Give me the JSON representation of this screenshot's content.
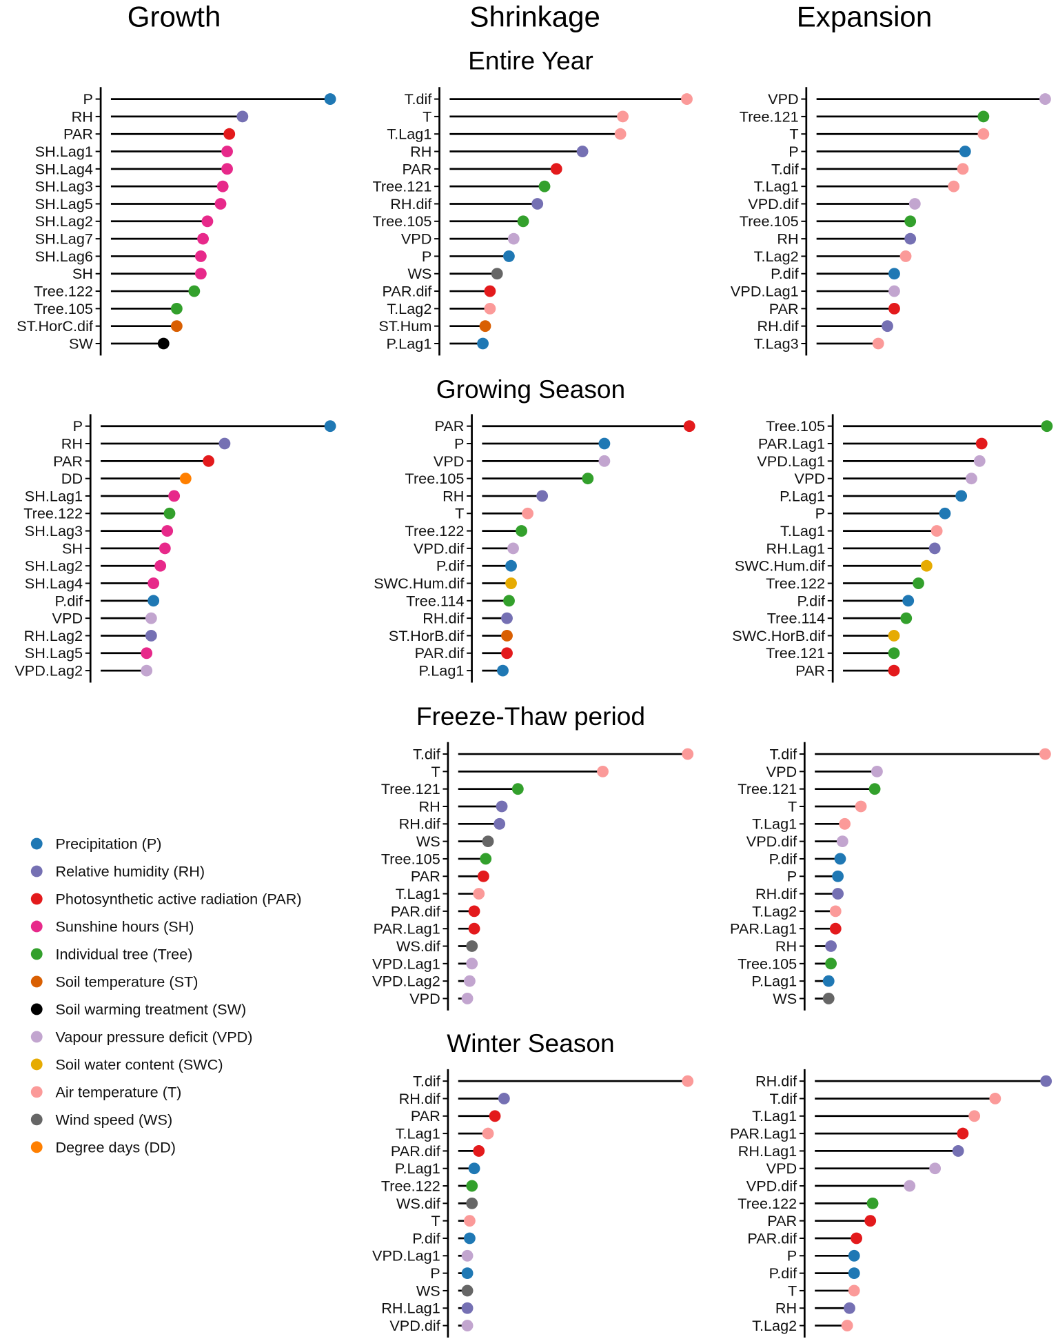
{
  "chart_data": {
    "type": "lollipop",
    "value_note": "relative importance, normalized to top variable = 100 per panel (no axis shown)",
    "column_titles": [
      "Growth",
      "Shrinkage",
      "Expansion"
    ],
    "section_titles": [
      "Entire Year",
      "Growing Season",
      "Freeze-Thaw period",
      "Winter Season"
    ],
    "colors": {
      "P": "#1F78B4",
      "RH": "#7570B3",
      "PAR": "#E31A1C",
      "SH": "#E7298A",
      "Tree": "#33A02C",
      "ST": "#D95F02",
      "SW": "#000000",
      "VPD": "#C2A5CF",
      "SWC": "#E6AB02",
      "T": "#FB9A99",
      "WS": "#666666",
      "DD": "#FF7F00"
    },
    "legend": [
      {
        "key": "P",
        "label": "Precipitation (P)"
      },
      {
        "key": "RH",
        "label": "Relative humidity (RH)"
      },
      {
        "key": "PAR",
        "label": "Photosynthetic active radiation (PAR)"
      },
      {
        "key": "SH",
        "label": "Sunshine hours (SH)"
      },
      {
        "key": "Tree",
        "label": "Individual tree (Tree)"
      },
      {
        "key": "ST",
        "label": "Soil temperature (ST)"
      },
      {
        "key": "SW",
        "label": "Soil warming treatment (SW)"
      },
      {
        "key": "VPD",
        "label": "Vapour pressure deficit (VPD)"
      },
      {
        "key": "SWC",
        "label": "Soil water content (SWC)"
      },
      {
        "key": "T",
        "label": "Air temperature (T)"
      },
      {
        "key": "WS",
        "label": "Wind speed (WS)"
      },
      {
        "key": "DD",
        "label": "Degree days (DD)"
      }
    ],
    "panels": [
      {
        "column": "Growth",
        "section": "Entire Year",
        "items": [
          [
            "P",
            "P",
            100
          ],
          [
            "RH",
            "RH",
            60
          ],
          [
            "PAR",
            "PAR",
            54
          ],
          [
            "SH.Lag1",
            "SH",
            53
          ],
          [
            "SH.Lag4",
            "SH",
            53
          ],
          [
            "SH.Lag3",
            "SH",
            51
          ],
          [
            "SH.Lag5",
            "SH",
            50
          ],
          [
            "SH.Lag2",
            "SH",
            44
          ],
          [
            "SH.Lag7",
            "SH",
            42
          ],
          [
            "SH.Lag6",
            "SH",
            41
          ],
          [
            "SH",
            "SH",
            41
          ],
          [
            "Tree.122",
            "Tree",
            38
          ],
          [
            "Tree.105",
            "Tree",
            30
          ],
          [
            "ST.HorC.dif",
            "ST",
            30
          ],
          [
            "SW",
            "SW",
            24
          ]
        ]
      },
      {
        "column": "Shrinkage",
        "section": "Entire Year",
        "items": [
          [
            "T.dif",
            "T",
            100
          ],
          [
            "T",
            "T",
            73
          ],
          [
            "T.Lag1",
            "T",
            72
          ],
          [
            "RH",
            "RH",
            56
          ],
          [
            "PAR",
            "PAR",
            45
          ],
          [
            "Tree.121",
            "Tree",
            40
          ],
          [
            "RH.dif",
            "RH",
            37
          ],
          [
            "Tree.105",
            "Tree",
            31
          ],
          [
            "VPD",
            "VPD",
            27
          ],
          [
            "P",
            "P",
            25
          ],
          [
            "WS",
            "WS",
            20
          ],
          [
            "PAR.dif",
            "PAR",
            17
          ],
          [
            "T.Lag2",
            "T",
            17
          ],
          [
            "ST.Hum",
            "ST",
            15
          ],
          [
            "P.Lag1",
            "P",
            14
          ]
        ]
      },
      {
        "column": "Expansion",
        "section": "Entire Year",
        "items": [
          [
            "VPD",
            "VPD",
            100
          ],
          [
            "Tree.121",
            "Tree",
            73
          ],
          [
            "T",
            "T",
            73
          ],
          [
            "P",
            "P",
            65
          ],
          [
            "T.dif",
            "T",
            64
          ],
          [
            "T.Lag1",
            "T",
            60
          ],
          [
            "VPD.dif",
            "VPD",
            43
          ],
          [
            "Tree.105",
            "Tree",
            41
          ],
          [
            "RH",
            "RH",
            41
          ],
          [
            "T.Lag2",
            "T",
            39
          ],
          [
            "P.dif",
            "P",
            34
          ],
          [
            "VPD.Lag1",
            "VPD",
            34
          ],
          [
            "PAR",
            "PAR",
            34
          ],
          [
            "RH.dif",
            "RH",
            31
          ],
          [
            "T.Lag3",
            "T",
            27
          ]
        ]
      },
      {
        "column": "Growth",
        "section": "Growing Season",
        "items": [
          [
            "P",
            "P",
            100
          ],
          [
            "RH",
            "RH",
            54
          ],
          [
            "PAR",
            "PAR",
            47
          ],
          [
            "DD",
            "DD",
            37
          ],
          [
            "SH.Lag1",
            "SH",
            32
          ],
          [
            "Tree.122",
            "Tree",
            30
          ],
          [
            "SH.Lag3",
            "SH",
            29
          ],
          [
            "SH",
            "SH",
            28
          ],
          [
            "SH.Lag2",
            "SH",
            26
          ],
          [
            "SH.Lag4",
            "SH",
            23
          ],
          [
            "P.dif",
            "P",
            23
          ],
          [
            "VPD",
            "VPD",
            22
          ],
          [
            "RH.Lag2",
            "RH",
            22
          ],
          [
            "SH.Lag5",
            "SH",
            20
          ],
          [
            "VPD.Lag2",
            "VPD",
            20
          ]
        ]
      },
      {
        "column": "Shrinkage",
        "section": "Growing Season",
        "items": [
          [
            "PAR",
            "PAR",
            100
          ],
          [
            "P",
            "P",
            59
          ],
          [
            "VPD",
            "VPD",
            59
          ],
          [
            "Tree.105",
            "Tree",
            51
          ],
          [
            "RH",
            "RH",
            29
          ],
          [
            "T",
            "T",
            22
          ],
          [
            "Tree.122",
            "Tree",
            19
          ],
          [
            "VPD.dif",
            "VPD",
            15
          ],
          [
            "P.dif",
            "P",
            14
          ],
          [
            "SWC.Hum.dif",
            "SWC",
            14
          ],
          [
            "Tree.114",
            "Tree",
            13
          ],
          [
            "RH.dif",
            "RH",
            12
          ],
          [
            "ST.HorB.dif",
            "ST",
            12
          ],
          [
            "PAR.dif",
            "PAR",
            12
          ],
          [
            "P.Lag1",
            "P",
            10
          ]
        ]
      },
      {
        "column": "Expansion",
        "section": "Growing Season",
        "items": [
          [
            "Tree.105",
            "Tree",
            100
          ],
          [
            "PAR.Lag1",
            "PAR",
            68
          ],
          [
            "VPD.Lag1",
            "VPD",
            67
          ],
          [
            "VPD",
            "VPD",
            63
          ],
          [
            "P.Lag1",
            "P",
            58
          ],
          [
            "P",
            "P",
            50
          ],
          [
            "T.Lag1",
            "T",
            46
          ],
          [
            "RH.Lag1",
            "RH",
            45
          ],
          [
            "SWC.Hum.dif",
            "SWC",
            41
          ],
          [
            "Tree.122",
            "Tree",
            37
          ],
          [
            "P.dif",
            "P",
            32
          ],
          [
            "Tree.114",
            "Tree",
            31
          ],
          [
            "SWC.HorB.dif",
            "SWC",
            25
          ],
          [
            "Tree.121",
            "Tree",
            25
          ],
          [
            "PAR",
            "PAR",
            25
          ]
        ]
      },
      {
        "column": "Shrinkage",
        "section": "Freeze-Thaw period",
        "items": [
          [
            "T.dif",
            "T",
            100
          ],
          [
            "T",
            "T",
            63
          ],
          [
            "Tree.121",
            "Tree",
            26
          ],
          [
            "RH",
            "RH",
            19
          ],
          [
            "RH.dif",
            "RH",
            18
          ],
          [
            "WS",
            "WS",
            13
          ],
          [
            "Tree.105",
            "Tree",
            12
          ],
          [
            "PAR",
            "PAR",
            11
          ],
          [
            "T.Lag1",
            "T",
            9
          ],
          [
            "PAR.dif",
            "PAR",
            7
          ],
          [
            "PAR.Lag1",
            "PAR",
            7
          ],
          [
            "WS.dif",
            "WS",
            6
          ],
          [
            "VPD.Lag1",
            "VPD",
            6
          ],
          [
            "VPD.Lag2",
            "VPD",
            5
          ],
          [
            "VPD",
            "VPD",
            4
          ]
        ]
      },
      {
        "column": "Expansion",
        "section": "Freeze-Thaw period",
        "items": [
          [
            "T.dif",
            "T",
            100
          ],
          [
            "VPD",
            "VPD",
            27
          ],
          [
            "Tree.121",
            "Tree",
            26
          ],
          [
            "T",
            "T",
            20
          ],
          [
            "T.Lag1",
            "T",
            13
          ],
          [
            "VPD.dif",
            "VPD",
            12
          ],
          [
            "P.dif",
            "P",
            11
          ],
          [
            "P",
            "P",
            10
          ],
          [
            "RH.dif",
            "RH",
            10
          ],
          [
            "T.Lag2",
            "T",
            9
          ],
          [
            "PAR.Lag1",
            "PAR",
            9
          ],
          [
            "RH",
            "RH",
            7
          ],
          [
            "Tree.105",
            "Tree",
            7
          ],
          [
            "P.Lag1",
            "P",
            6
          ],
          [
            "WS",
            "WS",
            6
          ]
        ]
      },
      {
        "column": "Shrinkage",
        "section": "Winter Season",
        "items": [
          [
            "T.dif",
            "T",
            100
          ],
          [
            "RH.dif",
            "RH",
            20
          ],
          [
            "PAR",
            "PAR",
            16
          ],
          [
            "T.Lag1",
            "T",
            13
          ],
          [
            "PAR.dif",
            "PAR",
            9
          ],
          [
            "P.Lag1",
            "P",
            7
          ],
          [
            "Tree.122",
            "Tree",
            6
          ],
          [
            "WS.dif",
            "WS",
            6
          ],
          [
            "T",
            "T",
            5
          ],
          [
            "P.dif",
            "P",
            5
          ],
          [
            "VPD.Lag1",
            "VPD",
            4
          ],
          [
            "P",
            "P",
            4
          ],
          [
            "WS",
            "WS",
            4
          ],
          [
            "RH.Lag1",
            "RH",
            4
          ],
          [
            "VPD.dif",
            "VPD",
            4
          ]
        ]
      },
      {
        "column": "Expansion",
        "section": "Winter Season",
        "items": [
          [
            "RH.dif",
            "RH",
            100
          ],
          [
            "T.dif",
            "T",
            78
          ],
          [
            "T.Lag1",
            "T",
            69
          ],
          [
            "PAR.Lag1",
            "PAR",
            64
          ],
          [
            "RH.Lag1",
            "RH",
            62
          ],
          [
            "VPD",
            "VPD",
            52
          ],
          [
            "VPD.dif",
            "VPD",
            41
          ],
          [
            "Tree.122",
            "Tree",
            25
          ],
          [
            "PAR",
            "PAR",
            24
          ],
          [
            "PAR.dif",
            "PAR",
            18
          ],
          [
            "P",
            "P",
            17
          ],
          [
            "P.dif",
            "P",
            17
          ],
          [
            "T",
            "T",
            17
          ],
          [
            "RH",
            "RH",
            15
          ],
          [
            "T.Lag2",
            "T",
            14
          ]
        ]
      }
    ]
  }
}
